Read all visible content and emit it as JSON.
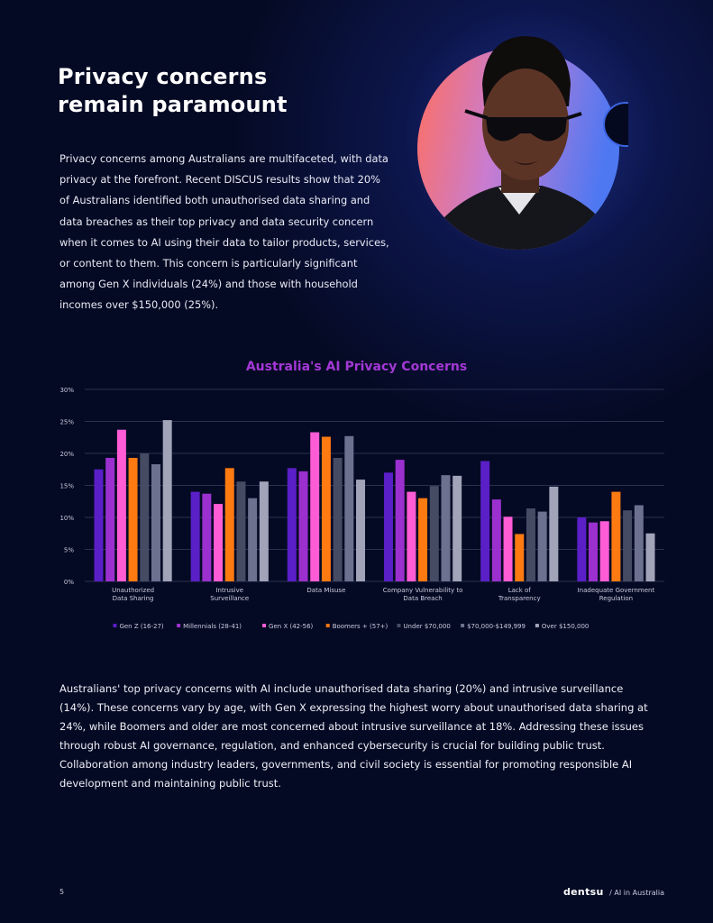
{
  "page": {
    "title_line1": "Privacy concerns",
    "title_line2": "remain paramount",
    "intro": "Privacy concerns among Australians are multifaceted, with data privacy at the forefront. Recent DISCUS results show that 20% of Australians identified both unauthorised data sharing and data breaches as their top privacy and data security concern when it comes to AI using their data to tailor products, services, or content to them. This concern is particularly significant among Gen X individuals (24%) and those with household incomes over $150,000 (25%).",
    "body": "Australians' top privacy concerns with AI include unauthorised data sharing (20%) and intrusive surveillance (14%). These concerns vary by age, with Gen X expressing the highest worry about unauthorised data sharing at 24%, while Boomers and older are most concerned about intrusive surveillance at 18%. Addressing these issues through robust AI governance, regulation, and enhanced cybersecurity is crucial for building public trust. Collaboration among industry leaders, governments, and civil society is essential for promoting responsible AI development and maintaining public trust.",
    "page_number": "5",
    "brand": "dentsu",
    "brand_suffix": "/ AI in Australia"
  },
  "colors": {
    "background": "#050a24",
    "chart_title": "#a438d6",
    "gridline": "#2a3050",
    "axis_text": "#c9cbe0"
  },
  "chart_data": {
    "type": "bar",
    "title": "Australia's AI Privacy Concerns",
    "xlabel": "",
    "ylabel": "",
    "ylim": [
      0,
      30
    ],
    "yticks": [
      0,
      5,
      10,
      15,
      20,
      25,
      30
    ],
    "ytick_labels": [
      "0%",
      "5%",
      "10%",
      "15%",
      "20%",
      "25%",
      "30%"
    ],
    "grid": true,
    "legend_position": "bottom",
    "categories": [
      [
        "Unauthorized",
        "Data Sharing"
      ],
      [
        "Intrusive",
        "Surveillance"
      ],
      [
        "Data Misuse"
      ],
      [
        "Company Vulnerability to",
        "Data Breach"
      ],
      [
        "Lack of",
        "Transparency"
      ],
      [
        "Inadequate Government",
        "Regulation"
      ]
    ],
    "series": [
      {
        "name": "Gen Z (16-27)",
        "color": "#5a1fc7",
        "values": [
          17.5,
          14,
          17.7,
          17,
          18.8,
          10
        ]
      },
      {
        "name": "Millennials (28-41)",
        "color": "#9b30cf",
        "values": [
          19.3,
          13.7,
          17.2,
          19,
          12.8,
          9.2
        ]
      },
      {
        "name": "Gen X (42-56)",
        "color": "#ff5cd6",
        "values": [
          23.7,
          12.1,
          23.3,
          14,
          10.1,
          9.4
        ]
      },
      {
        "name": "Boomers + (57+)",
        "color": "#ff7a10",
        "values": [
          19.3,
          17.7,
          22.6,
          13,
          7.4,
          14
        ]
      },
      {
        "name": "Under $70,000",
        "color": "#464b64",
        "values": [
          20,
          15.6,
          19.3,
          14.9,
          11.4,
          11.1
        ]
      },
      {
        "name": "$70,000-$149,999",
        "color": "#6d7190",
        "values": [
          18.3,
          13,
          22.7,
          16.6,
          10.9,
          11.9
        ]
      },
      {
        "name": "Over $150,000",
        "color": "#a1a3b8",
        "values": [
          25.2,
          15.6,
          15.9,
          16.5,
          14.8,
          7.5
        ]
      }
    ]
  }
}
